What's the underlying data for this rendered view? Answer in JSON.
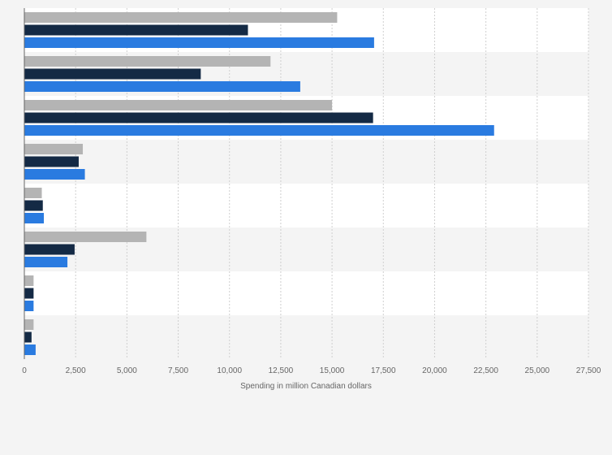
{
  "chart_data": {
    "type": "bar",
    "orientation": "horizontal",
    "categories": [
      "",
      "",
      "",
      "",
      "",
      "",
      "",
      ""
    ],
    "series": [
      {
        "color": "#b4b4b4",
        "values": [
          15250,
          12000,
          15000,
          2850,
          850,
          5950,
          450,
          450
        ]
      },
      {
        "color": "#142a45",
        "values": [
          10900,
          8600,
          17000,
          2650,
          900,
          2450,
          450,
          350
        ]
      },
      {
        "color": "#2a7be0",
        "values": [
          17050,
          13450,
          22900,
          2950,
          950,
          2100,
          450,
          550
        ]
      }
    ],
    "xlabel": "Spending in million Canadian dollars",
    "xlim": [
      0,
      27500
    ],
    "xticks": [
      0,
      2500,
      5000,
      7500,
      10000,
      12500,
      15000,
      17500,
      20000,
      22500,
      25000,
      27500
    ],
    "xtick_labels": [
      "0",
      "2,500",
      "5,000",
      "7,500",
      "10,000",
      "12,500",
      "15,000",
      "17,500",
      "20,000",
      "22,500",
      "25,000",
      "27,500"
    ],
    "grid": "vertical dashed",
    "legend": "none"
  }
}
